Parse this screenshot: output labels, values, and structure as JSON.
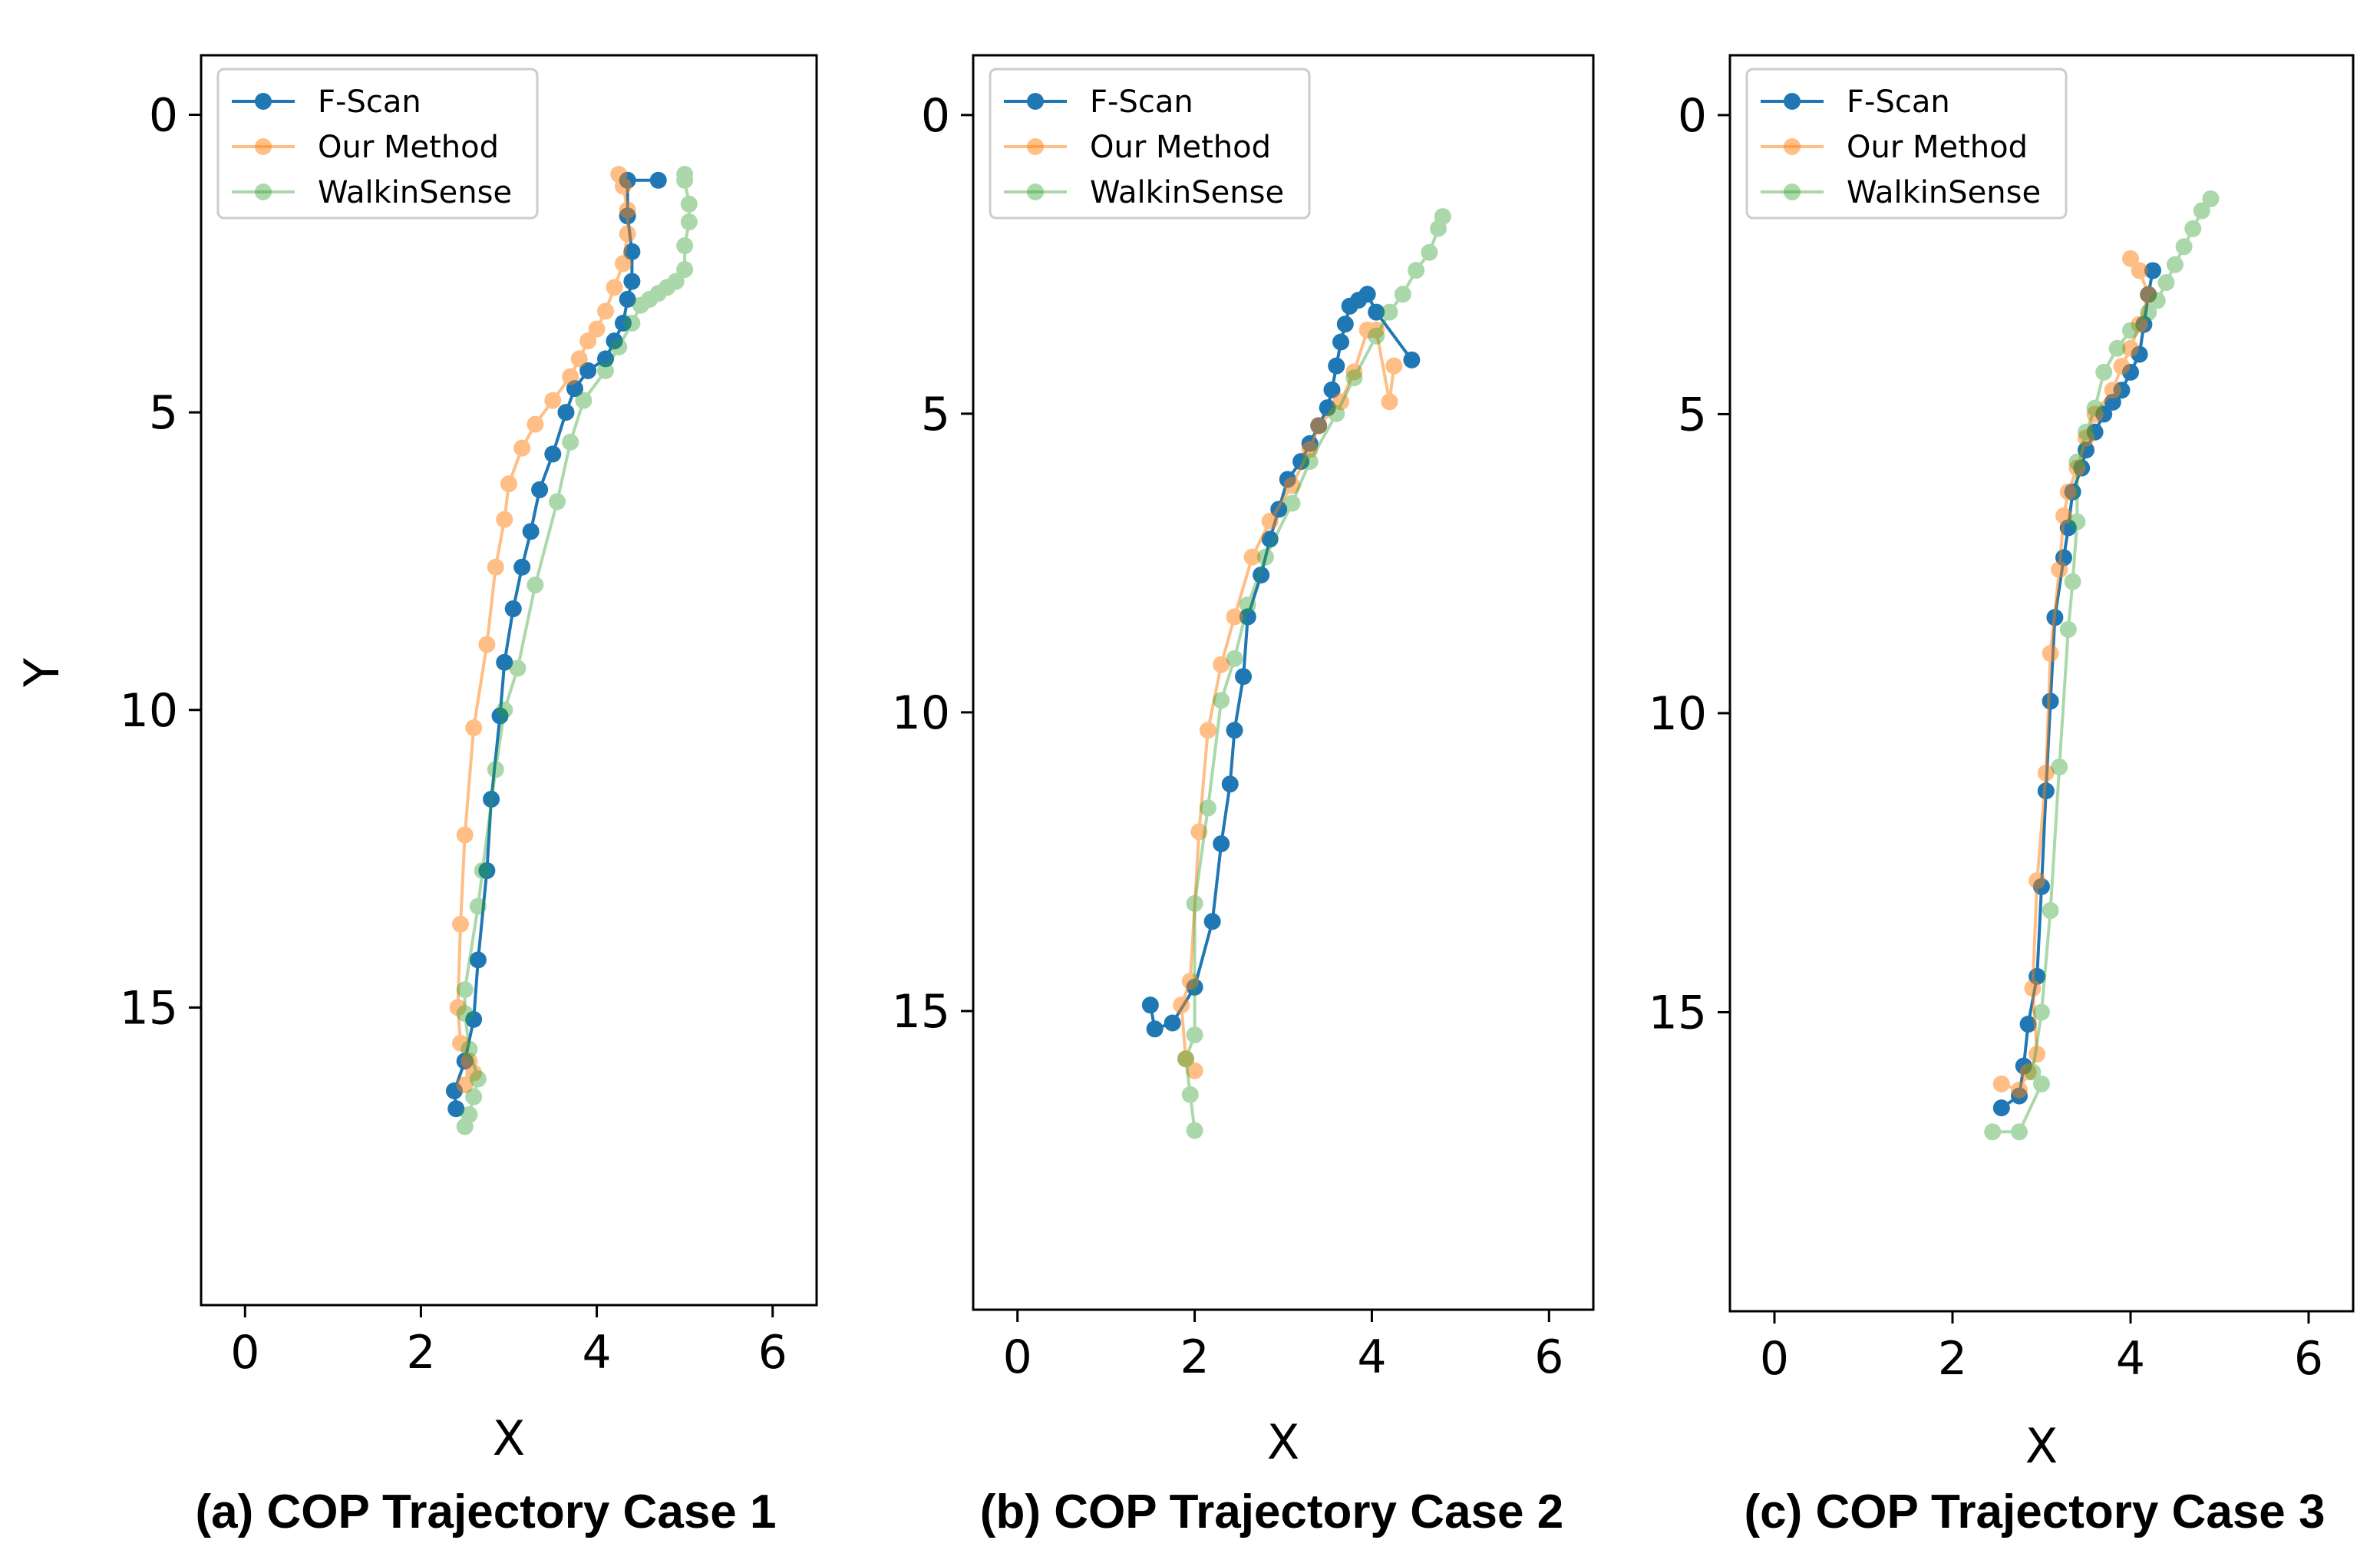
{
  "chart_data": [
    {
      "type": "line",
      "caption": "(a) COP Trajectory Case 1",
      "xlabel": "X",
      "ylabel": "Y",
      "xlim": [
        -0.5,
        6.5
      ],
      "ylim": [
        20,
        -1
      ],
      "y_inverted": true,
      "xticks": [
        "0",
        "2",
        "4",
        "6"
      ],
      "yticks": [
        "0",
        "5",
        "10",
        "15"
      ],
      "legend": "upper-left",
      "series": [
        {
          "name": "F-Scan",
          "color": "#1f77b4",
          "x": [
            4.7,
            4.35,
            4.35,
            4.4,
            4.4,
            4.35,
            4.3,
            4.2,
            4.1,
            3.9,
            3.75,
            3.65,
            3.5,
            3.35,
            3.25,
            3.15,
            3.05,
            2.95,
            2.9,
            2.8,
            2.75,
            2.65,
            2.6,
            2.5,
            2.38,
            2.4
          ],
          "y": [
            1.1,
            1.1,
            1.7,
            2.3,
            2.8,
            3.1,
            3.5,
            3.8,
            4.1,
            4.3,
            4.6,
            5.0,
            5.7,
            6.3,
            7.0,
            7.6,
            8.3,
            9.2,
            10.1,
            11.5,
            12.7,
            14.2,
            15.2,
            15.9,
            16.4,
            16.7
          ]
        },
        {
          "name": "Our Method",
          "color": "#ff7f0e",
          "x": [
            4.25,
            4.3,
            4.35,
            4.35,
            4.3,
            4.2,
            4.1,
            4.0,
            3.9,
            3.8,
            3.7,
            3.5,
            3.3,
            3.15,
            3.0,
            2.95,
            2.85,
            2.75,
            2.6,
            2.5,
            2.45,
            2.42,
            2.45,
            2.55,
            2.6,
            2.5
          ],
          "y": [
            1.0,
            1.2,
            1.6,
            2.0,
            2.5,
            2.9,
            3.3,
            3.6,
            3.8,
            4.1,
            4.4,
            4.8,
            5.2,
            5.6,
            6.2,
            6.8,
            7.6,
            8.9,
            10.3,
            12.1,
            13.6,
            15.0,
            15.6,
            15.9,
            16.1,
            16.3
          ],
          "alpha": 0.5
        },
        {
          "name": "WalkinSense",
          "color": "#2ca02c",
          "x": [
            5.0,
            5.0,
            5.05,
            5.05,
            5.0,
            5.0,
            4.9,
            4.8,
            4.7,
            4.6,
            4.5,
            4.4,
            4.25,
            4.1,
            3.85,
            3.7,
            3.55,
            3.3,
            3.1,
            2.95,
            2.85,
            2.7,
            2.65,
            2.5,
            2.5,
            2.55,
            2.65,
            2.6,
            2.55,
            2.5
          ],
          "y": [
            1.0,
            1.1,
            1.5,
            1.8,
            2.2,
            2.6,
            2.8,
            2.9,
            3.0,
            3.1,
            3.2,
            3.5,
            3.9,
            4.3,
            4.8,
            5.5,
            6.5,
            7.9,
            9.3,
            10.0,
            11.0,
            12.7,
            13.3,
            14.7,
            15.1,
            15.7,
            16.2,
            16.5,
            16.8,
            17.0
          ],
          "alpha": 0.4
        }
      ]
    },
    {
      "type": "line",
      "caption": "(b) COP Trajectory Case 2",
      "xlabel": "X",
      "ylabel": "",
      "xlim": [
        -0.5,
        6.5
      ],
      "ylim": [
        20,
        -1
      ],
      "y_inverted": true,
      "xticks": [
        "0",
        "2",
        "4",
        "6"
      ],
      "yticks": [
        "0",
        "5",
        "10",
        "15"
      ],
      "legend": "upper-left",
      "series": [
        {
          "name": "F-Scan",
          "color": "#1f77b4",
          "x": [
            4.45,
            4.05,
            3.95,
            3.85,
            3.75,
            3.7,
            3.65,
            3.6,
            3.55,
            3.5,
            3.4,
            3.3,
            3.2,
            3.05,
            2.95,
            2.85,
            2.75,
            2.6,
            2.55,
            2.45,
            2.4,
            2.3,
            2.2,
            2.0,
            1.75,
            1.55,
            1.5
          ],
          "y": [
            4.1,
            3.3,
            3.0,
            3.1,
            3.2,
            3.5,
            3.8,
            4.2,
            4.6,
            4.9,
            5.2,
            5.5,
            5.8,
            6.1,
            6.6,
            7.1,
            7.7,
            8.4,
            9.4,
            10.3,
            11.2,
            12.2,
            13.5,
            14.6,
            15.2,
            15.3,
            14.9
          ],
          "color_alpha": 1
        },
        {
          "name": "Our Method",
          "color": "#ff7f0e",
          "x": [
            4.25,
            4.2,
            4.05,
            3.95,
            3.8,
            3.65,
            3.4,
            3.3,
            3.1,
            2.85,
            2.65,
            2.45,
            2.3,
            2.15,
            2.05,
            1.95,
            1.85,
            1.9,
            2.0
          ],
          "y": [
            4.2,
            4.8,
            3.6,
            3.6,
            4.3,
            4.8,
            5.2,
            5.6,
            6.2,
            6.8,
            7.4,
            8.4,
            9.2,
            10.3,
            12.0,
            14.5,
            14.9,
            15.8,
            16.0
          ],
          "alpha": 0.5
        },
        {
          "name": "WalkinSense",
          "color": "#2ca02c",
          "x": [
            4.8,
            4.75,
            4.65,
            4.5,
            4.35,
            4.2,
            4.05,
            3.8,
            3.6,
            3.3,
            3.1,
            2.8,
            2.6,
            2.45,
            2.3,
            2.15,
            2.0,
            2.0,
            1.9,
            1.95,
            2.0
          ],
          "y": [
            1.7,
            1.9,
            2.3,
            2.6,
            3.0,
            3.3,
            3.7,
            4.4,
            5.0,
            5.8,
            6.5,
            7.4,
            8.2,
            9.1,
            9.8,
            11.6,
            13.2,
            15.4,
            15.8,
            16.4,
            17.0
          ],
          "alpha": 0.4
        }
      ]
    },
    {
      "type": "line",
      "caption": "(c) COP Trajectory Case 3",
      "xlabel": "X",
      "ylabel": "",
      "xlim": [
        -0.5,
        6.5
      ],
      "ylim": [
        20,
        -1
      ],
      "y_inverted": true,
      "xticks": [
        "0",
        "2",
        "4",
        "6"
      ],
      "yticks": [
        "0",
        "5",
        "10",
        "15"
      ],
      "legend": "upper-left",
      "series": [
        {
          "name": "F-Scan",
          "color": "#1f77b4",
          "x": [
            4.25,
            4.2,
            4.15,
            4.1,
            4.0,
            3.9,
            3.8,
            3.7,
            3.6,
            3.5,
            3.45,
            3.35,
            3.3,
            3.25,
            3.15,
            3.1,
            3.05,
            3.0,
            2.95,
            2.85,
            2.8,
            2.75,
            2.55
          ],
          "y": [
            2.6,
            3.0,
            3.5,
            4.0,
            4.3,
            4.6,
            4.8,
            5.0,
            5.3,
            5.6,
            5.9,
            6.3,
            6.9,
            7.4,
            8.4,
            9.8,
            11.3,
            12.9,
            14.4,
            15.2,
            15.9,
            16.4,
            16.6
          ]
        },
        {
          "name": "Our Method",
          "color": "#ff7f0e",
          "x": [
            4.0,
            4.1,
            4.2,
            4.1,
            4.0,
            3.9,
            3.8,
            3.6,
            3.5,
            3.4,
            3.3,
            3.25,
            3.2,
            3.1,
            3.05,
            2.95,
            2.9,
            2.95,
            2.85,
            2.75,
            2.55
          ],
          "y": [
            2.4,
            2.6,
            3.0,
            3.5,
            3.9,
            4.2,
            4.6,
            5.0,
            5.4,
            5.9,
            6.3,
            6.7,
            7.6,
            9.0,
            11.0,
            12.8,
            14.6,
            15.7,
            16.0,
            16.3,
            16.2
          ],
          "alpha": 0.5
        },
        {
          "name": "WalkinSense",
          "color": "#2ca02c",
          "x": [
            4.9,
            4.8,
            4.7,
            4.6,
            4.5,
            4.4,
            4.3,
            4.2,
            4.0,
            3.85,
            3.7,
            3.6,
            3.5,
            3.4,
            3.4,
            3.35,
            3.3,
            3.2,
            3.1,
            3.0,
            2.9,
            3.0,
            2.75,
            2.45
          ],
          "y": [
            1.4,
            1.6,
            1.9,
            2.2,
            2.5,
            2.8,
            3.1,
            3.3,
            3.6,
            3.9,
            4.3,
            4.9,
            5.3,
            5.8,
            6.8,
            7.8,
            8.6,
            10.9,
            13.3,
            15.0,
            16.0,
            16.2,
            17.0,
            17.0
          ],
          "alpha": 0.4
        }
      ]
    }
  ]
}
